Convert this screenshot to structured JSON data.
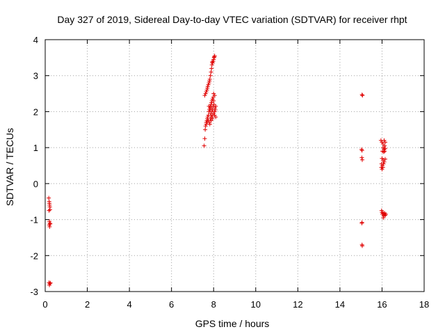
{
  "chart_data": {
    "type": "scatter",
    "title": "Day 327 of 2019, Sidereal Day-to-day VTEC variation (SDTVAR) for receiver rhpt",
    "xlabel": "GPS time / hours",
    "ylabel": "SDTVAR / TECUs",
    "xlim": [
      0,
      18
    ],
    "ylim": [
      -3,
      4
    ],
    "xticks": [
      "0",
      "2",
      "4",
      "6",
      "8",
      "10",
      "12",
      "14",
      "16",
      "18"
    ],
    "yticks": [
      "4",
      "3",
      "2",
      "1",
      "0",
      "-1",
      "-2",
      "-3"
    ],
    "grid": true,
    "marker": "plus",
    "color": "#e00000",
    "series": [
      {
        "name": "SDTVAR",
        "points": [
          [
            0.17,
            -0.4
          ],
          [
            0.19,
            -0.5
          ],
          [
            0.2,
            -0.55
          ],
          [
            0.21,
            -0.6
          ],
          [
            0.22,
            -0.65
          ],
          [
            0.18,
            -0.75
          ],
          [
            0.23,
            -0.72
          ],
          [
            0.2,
            -1.05
          ],
          [
            0.22,
            -1.1
          ],
          [
            0.19,
            -1.15
          ],
          [
            0.24,
            -1.12
          ],
          [
            0.21,
            -1.2
          ],
          [
            0.18,
            -2.75
          ],
          [
            0.22,
            -2.78
          ],
          [
            0.25,
            -2.76
          ],
          [
            0.2,
            -2.82
          ],
          [
            7.55,
            1.05
          ],
          [
            7.58,
            1.25
          ],
          [
            7.6,
            1.5
          ],
          [
            7.62,
            1.6
          ],
          [
            7.65,
            1.7
          ],
          [
            7.68,
            1.75
          ],
          [
            7.7,
            1.8
          ],
          [
            7.72,
            1.85
          ],
          [
            7.75,
            1.9
          ],
          [
            7.78,
            2.0
          ],
          [
            7.8,
            2.05
          ],
          [
            7.82,
            2.1
          ],
          [
            7.85,
            2.15
          ],
          [
            7.88,
            2.2
          ],
          [
            7.9,
            2.25
          ],
          [
            7.92,
            2.3
          ],
          [
            7.95,
            2.35
          ],
          [
            7.98,
            2.4
          ],
          [
            8.0,
            2.5
          ],
          [
            7.65,
            1.65
          ],
          [
            7.7,
            1.7
          ],
          [
            7.75,
            1.75
          ],
          [
            7.8,
            1.7
          ],
          [
            7.85,
            1.8
          ],
          [
            7.9,
            1.85
          ],
          [
            7.95,
            1.9
          ],
          [
            8.0,
            1.95
          ],
          [
            8.05,
            2.0
          ],
          [
            8.08,
            2.05
          ],
          [
            7.82,
            1.65
          ],
          [
            7.88,
            1.75
          ],
          [
            7.92,
            2.0
          ],
          [
            7.97,
            2.15
          ],
          [
            8.02,
            2.2
          ],
          [
            8.06,
            2.1
          ],
          [
            8.1,
            1.85
          ],
          [
            7.86,
            1.95
          ],
          [
            7.94,
            1.8
          ],
          [
            8.04,
            1.9
          ],
          [
            7.78,
            2.15
          ],
          [
            7.84,
            2.05
          ],
          [
            7.96,
            2.05
          ],
          [
            8.0,
            2.3
          ],
          [
            8.05,
            2.45
          ],
          [
            7.9,
            2.1
          ],
          [
            8.1,
            2.15
          ],
          [
            7.88,
            1.9
          ],
          [
            7.58,
            2.45
          ],
          [
            7.62,
            2.5
          ],
          [
            7.65,
            2.55
          ],
          [
            7.68,
            2.6
          ],
          [
            7.7,
            2.65
          ],
          [
            7.72,
            2.7
          ],
          [
            7.75,
            2.75
          ],
          [
            7.78,
            2.8
          ],
          [
            7.8,
            2.85
          ],
          [
            7.82,
            2.9
          ],
          [
            7.85,
            3.0
          ],
          [
            7.88,
            3.1
          ],
          [
            7.9,
            3.2
          ],
          [
            7.92,
            3.3
          ],
          [
            7.95,
            3.35
          ],
          [
            7.98,
            3.4
          ],
          [
            8.0,
            3.45
          ],
          [
            8.02,
            3.5
          ],
          [
            8.05,
            3.55
          ],
          [
            7.93,
            3.38
          ],
          [
            8.03,
            3.52
          ],
          [
            15.05,
            2.47
          ],
          [
            15.07,
            2.45
          ],
          [
            15.03,
            0.95
          ],
          [
            15.05,
            0.92
          ],
          [
            15.04,
            0.72
          ],
          [
            15.06,
            0.66
          ],
          [
            15.05,
            -1.08
          ],
          [
            15.04,
            -1.1
          ],
          [
            15.05,
            -1.7
          ],
          [
            15.06,
            -1.73
          ],
          [
            15.95,
            1.2
          ],
          [
            16.0,
            1.15
          ],
          [
            16.05,
            1.1
          ],
          [
            16.1,
            1.2
          ],
          [
            16.15,
            1.15
          ],
          [
            16.12,
            1.05
          ],
          [
            16.05,
            1.0
          ],
          [
            16.1,
            0.95
          ],
          [
            16.15,
            0.98
          ],
          [
            16.02,
            0.9
          ],
          [
            16.08,
            0.88
          ],
          [
            16.12,
            0.9
          ],
          [
            16.0,
            0.7
          ],
          [
            16.05,
            0.65
          ],
          [
            16.1,
            0.6
          ],
          [
            16.15,
            0.68
          ],
          [
            15.98,
            0.55
          ],
          [
            16.02,
            0.5
          ],
          [
            16.07,
            0.55
          ],
          [
            15.97,
            0.45
          ],
          [
            16.0,
            0.4
          ],
          [
            16.04,
            0.45
          ],
          [
            15.98,
            -0.75
          ],
          [
            16.0,
            -0.8
          ],
          [
            16.05,
            -0.82
          ],
          [
            16.1,
            -0.85
          ],
          [
            16.15,
            -0.88
          ],
          [
            16.08,
            -0.9
          ],
          [
            16.12,
            -0.82
          ],
          [
            16.02,
            -0.85
          ],
          [
            16.06,
            -0.95
          ],
          [
            16.18,
            -0.85
          ]
        ]
      }
    ]
  }
}
